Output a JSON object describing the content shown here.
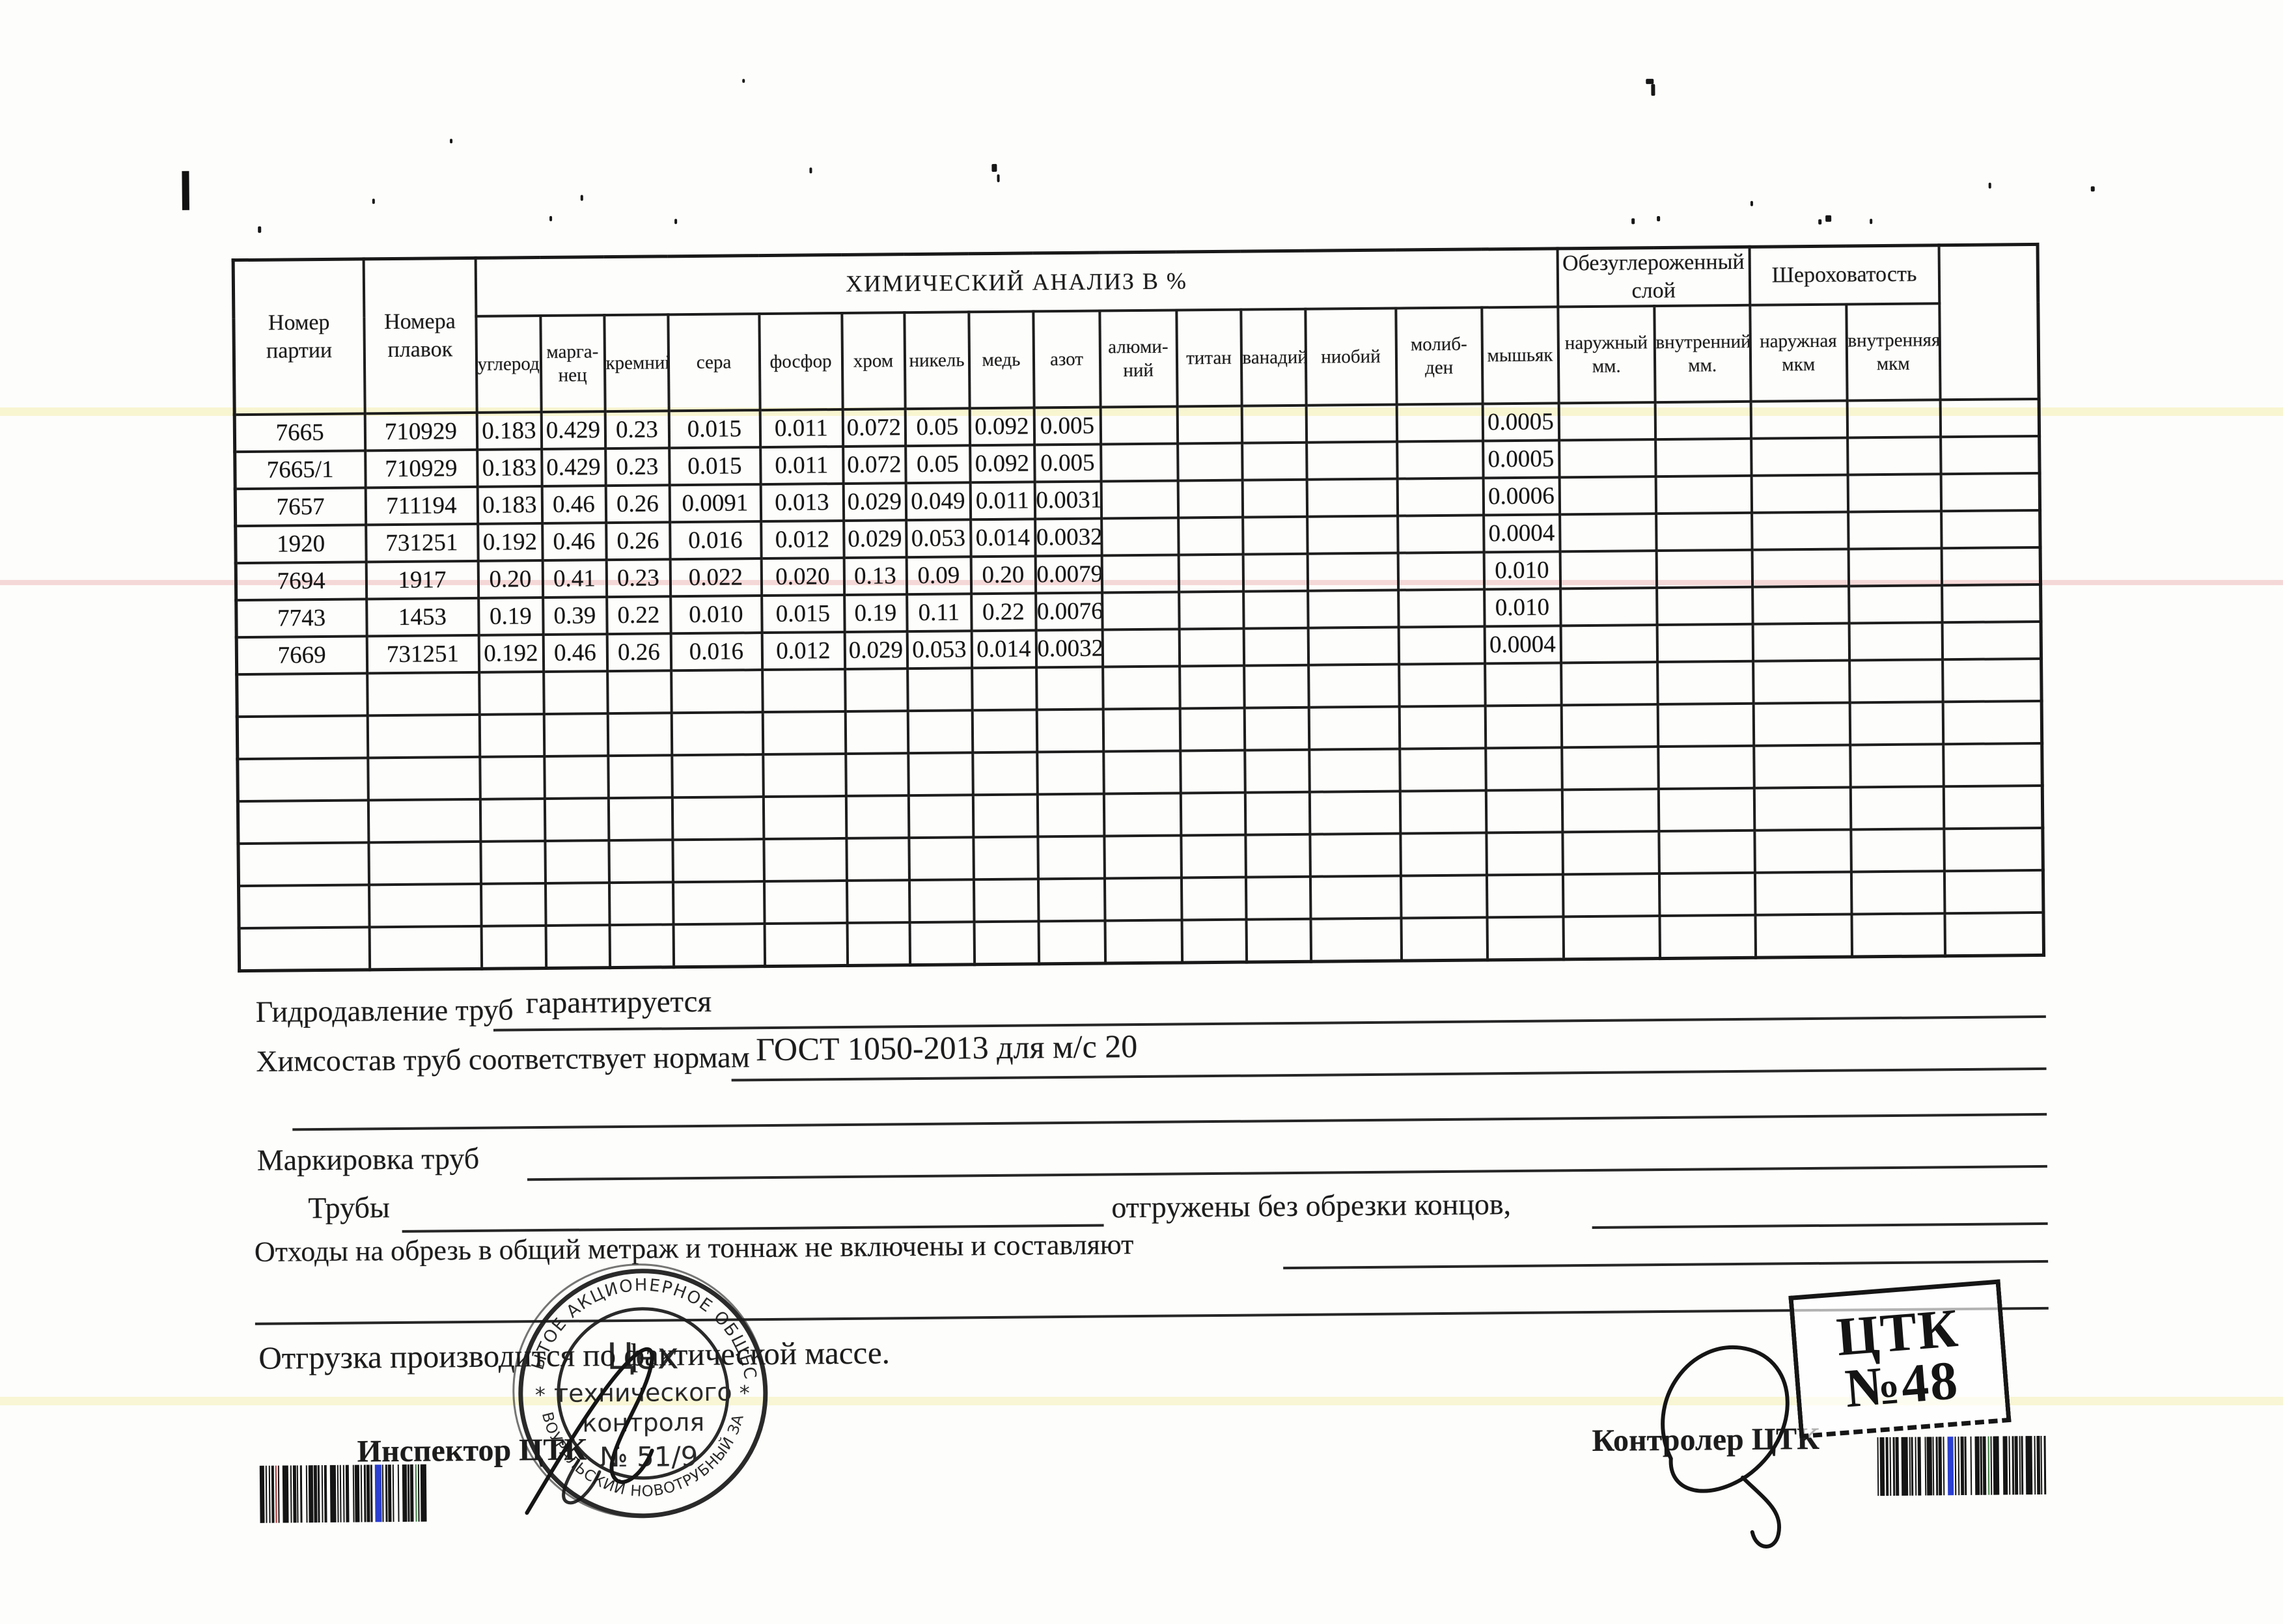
{
  "table": {
    "title": "ХИМИЧЕСКИЙ АНАЛИЗ  В  %",
    "col_party": "Номер\nпартии",
    "col_melts": "Номера\nплавок",
    "chem_columns": [
      "углерод",
      "марга-\nнец",
      "кремний",
      "сера",
      "фосфор",
      "хром",
      "никель",
      "медь",
      "азот",
      "алюми-\nний",
      "титан",
      "ванадий",
      "ниобий",
      "молиб-\nден",
      "мышьяк"
    ],
    "group_decarb": "Обезуглероженный\nслой",
    "decarb_columns": [
      "наружный\nмм.",
      "внутренний\nмм."
    ],
    "group_rough": "Шероховатость",
    "rough_columns": [
      "наружная\nмкм",
      "внутренняя\nмкм"
    ],
    "rows": [
      {
        "party": "7665",
        "melts": "710929",
        "values": [
          "0.183",
          "0.429",
          "0.23",
          "0.015",
          "0.011",
          "0.072",
          "0.05",
          "0.092",
          "0.005",
          "",
          "",
          "",
          "",
          "",
          "0.0005"
        ]
      },
      {
        "party": "7665/1",
        "melts": "710929",
        "values": [
          "0.183",
          "0.429",
          "0.23",
          "0.015",
          "0.011",
          "0.072",
          "0.05",
          "0.092",
          "0.005",
          "",
          "",
          "",
          "",
          "",
          "0.0005"
        ]
      },
      {
        "party": "7657",
        "melts": "711194",
        "values": [
          "0.183",
          "0.46",
          "0.26",
          "0.0091",
          "0.013",
          "0.029",
          "0.049",
          "0.011",
          "0.0031",
          "",
          "",
          "",
          "",
          "",
          "0.0006"
        ]
      },
      {
        "party": "1920",
        "melts": "731251",
        "values": [
          "0.192",
          "0.46",
          "0.26",
          "0.016",
          "0.012",
          "0.029",
          "0.053",
          "0.014",
          "0.0032",
          "",
          "",
          "",
          "",
          "",
          "0.0004"
        ]
      },
      {
        "party": "7694",
        "melts": "1917",
        "values": [
          "0.20",
          "0.41",
          "0.23",
          "0.022",
          "0.020",
          "0.13",
          "0.09",
          "0.20",
          "0.0079",
          "",
          "",
          "",
          "",
          "",
          "0.010"
        ]
      },
      {
        "party": "7743",
        "melts": "1453",
        "values": [
          "0.19",
          "0.39",
          "0.22",
          "0.010",
          "0.015",
          "0.19",
          "0.11",
          "0.22",
          "0.0076",
          "",
          "",
          "",
          "",
          "",
          "0.010"
        ]
      },
      {
        "party": "7669",
        "melts": "731251",
        "values": [
          "0.192",
          "0.46",
          "0.26",
          "0.016",
          "0.012",
          "0.029",
          "0.053",
          "0.014",
          "0.0032",
          "",
          "",
          "",
          "",
          "",
          "0.0004"
        ]
      }
    ],
    "empty_rows": 7
  },
  "fields": {
    "hydro_label": "Гидродавление труб",
    "hydro_value": "гарантируется",
    "chem_label": "Химсостав труб соответствует нормам",
    "chem_value": "ГОСТ 1050-2013 для м/с 20",
    "marking_label": "Маркировка труб",
    "pipes_label": "Трубы",
    "pipes_note": "отгружены без обрезки концов,",
    "waste_label": "Отходы на обрезь в общий метраж и тоннаж не включены и составляют",
    "shipping_note": "Отгрузка производится по фактической массе.",
    "inspector_label": "Инспектор ЦТК",
    "controller_label": "Контролер ЦТК"
  },
  "round_stamp": {
    "outer_top": "ОТКРЫТОЕ АКЦИОНЕРНОЕ ОБЩЕСТВО",
    "outer_bottom": "«ПЕРВОУРАЛЬСКИЙ НОВОТРУБНЫЙ ЗАВОД»",
    "star_left": "*",
    "star_right": "*",
    "inner_line1": "Цех",
    "inner_line2": "технического",
    "inner_line3": "контроля",
    "inner_line4": "№ 51/9"
  },
  "box_stamp": {
    "line1": "ЦТК",
    "line2": "№48"
  },
  "artifact_colors": {
    "yellow_line": "#f4efae",
    "pink_line": "#edb9b9",
    "ink": "#1d1d1d"
  }
}
